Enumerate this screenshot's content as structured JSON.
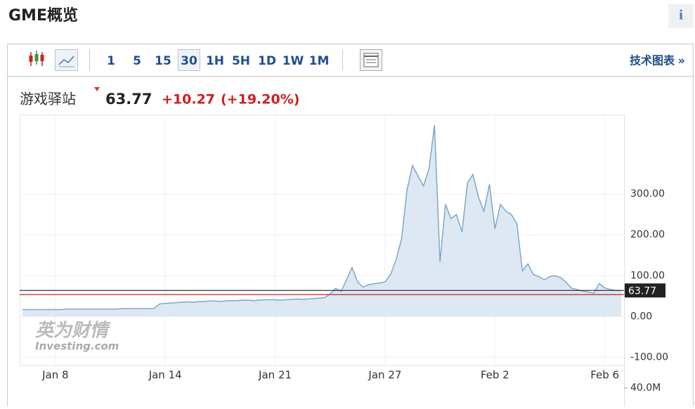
{
  "header": {
    "title": "GME概览",
    "info_icon": "i"
  },
  "toolbar": {
    "intervals": [
      "1",
      "5",
      "15",
      "30",
      "1H",
      "5H",
      "1D",
      "1W",
      "1M"
    ],
    "active_interval": 3,
    "link": "技术图表",
    "link_arrow": "»"
  },
  "quote": {
    "name": "游戏驿站",
    "price": 63.77,
    "change": "+10.27",
    "change_pct": "(+19.20%)"
  },
  "watermark": {
    "text": "英为财情",
    "subtext": "Investing.com"
  },
  "chart_data": {
    "type": "area",
    "color": "#7ea6cc",
    "fill_color": "#dde8f3",
    "categories": [
      null,
      null,
      null,
      null,
      null,
      null,
      "Jan 8",
      null,
      null,
      null,
      null,
      null,
      null,
      null,
      null,
      null,
      null,
      null,
      null,
      null,
      null,
      null,
      null,
      null,
      null,
      null,
      "Jan 14",
      null,
      null,
      null,
      null,
      null,
      null,
      null,
      null,
      null,
      null,
      null,
      null,
      null,
      null,
      null,
      null,
      null,
      null,
      null,
      "Jan 21",
      null,
      null,
      null,
      null,
      null,
      null,
      null,
      null,
      null,
      null,
      null,
      null,
      null,
      null,
      null,
      null,
      null,
      null,
      null,
      "Jan 27",
      null,
      null,
      null,
      null,
      null,
      null,
      null,
      null,
      null,
      null,
      null,
      null,
      null,
      null,
      null,
      null,
      null,
      null,
      null,
      "Feb 2",
      null,
      null,
      null,
      null,
      null,
      null,
      null,
      null,
      null,
      null,
      null,
      null,
      null,
      null,
      null,
      null,
      null,
      null,
      null,
      "Feb 6",
      null,
      null,
      null
    ],
    "values": [
      17,
      17,
      17,
      17,
      17,
      17,
      17,
      17,
      18,
      18,
      18,
      18,
      18,
      18,
      18,
      18,
      18,
      18,
      19,
      19,
      19,
      19,
      19,
      19,
      20,
      31,
      32,
      33,
      34,
      35,
      36,
      35,
      36,
      37,
      38,
      38,
      37,
      38,
      39,
      39,
      40,
      40,
      39,
      40,
      41,
      41,
      41,
      40,
      41,
      42,
      43,
      42,
      43,
      44,
      45,
      46,
      55,
      69,
      62,
      90,
      120,
      85,
      72,
      78,
      80,
      82,
      85,
      103,
      138,
      190,
      310,
      370,
      345,
      320,
      362,
      469,
      134,
      275,
      240,
      250,
      207,
      327,
      348,
      293,
      258,
      324,
      215,
      275,
      258,
      250,
      227,
      112,
      129,
      103,
      98,
      90,
      98,
      100,
      95,
      83,
      69,
      66,
      62,
      60,
      57,
      81,
      70,
      66,
      64,
      63.77
    ],
    "ylim": [
      -120,
      495
    ],
    "yticks": [
      {
        "value": 300,
        "label": "300.00"
      },
      {
        "value": 200,
        "label": "200.00"
      },
      {
        "value": 100,
        "label": "100.00"
      },
      {
        "value": 0,
        "label": "0.00"
      },
      {
        "value": -100,
        "label": "-100.00"
      }
    ],
    "reference_lines": [
      {
        "value": 63.77,
        "color": "#222222"
      },
      {
        "value": 53.5,
        "color": "#cc2222"
      }
    ],
    "volume_ticks": [
      {
        "value": 40000000,
        "label": "40.0M"
      }
    ],
    "grid": true
  }
}
